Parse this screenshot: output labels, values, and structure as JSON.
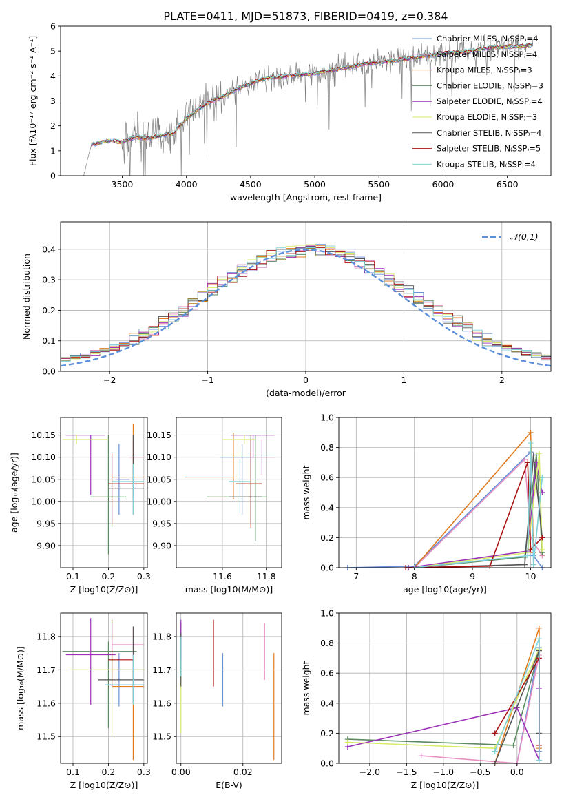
{
  "figure": {
    "title": "PLATE=0411, MJD=51873, FIBERID=0419, z=0.384"
  },
  "colors": {
    "chabrier_miles": "#6a8fd8",
    "salpeter_miles": "#e68fc0",
    "kroupa_miles": "#e07b20",
    "chabrier_elodie": "#5a8a60",
    "salpeter_elodie": "#9b32b8",
    "kroupa_elodie": "#d9ec6a",
    "chabrier_stelib": "#555555",
    "salpeter_stelib": "#aa1111",
    "kroupa_stelib": "#7fd0d8",
    "spectrum": "#808080",
    "normal_curve": "#5b8fd9"
  },
  "chart_data": [
    {
      "id": "spectrum",
      "type": "line",
      "title": "PLATE=0411, MJD=51873, FIBERID=0419, z=0.384",
      "xlabel": "wavelength [Angstrom, rest frame]",
      "ylabel": "Flux [f_λ10^-17 erg cm^-2 s^-1 A^-1]",
      "xlim": [
        3020,
        6840
      ],
      "ylim": [
        0,
        6
      ],
      "xticks": [
        3500,
        4000,
        4500,
        5000,
        5500,
        6000,
        6500
      ],
      "yticks": [
        0,
        1,
        2,
        3,
        4,
        5,
        6
      ],
      "legend_position": "top-right",
      "legend": [
        {
          "label": "Chabrier MILES, N_SSP=4",
          "color": "#6a8fd8"
        },
        {
          "label": "Salpeter MILES, N_SSP=4",
          "color": "#e68fc0"
        },
        {
          "label": "Kroupa MILES, N_SSP=3",
          "color": "#e07b20"
        },
        {
          "label": "Chabrier ELODIE, N_SSP=3",
          "color": "#5a8a60"
        },
        {
          "label": "Salpeter ELODIE, N_SSP=4",
          "color": "#9b32b8"
        },
        {
          "label": "Kroupa ELODIE, N_SSP=3",
          "color": "#d9ec6a"
        },
        {
          "label": "Chabrier STELIB, N_SSP=4",
          "color": "#555555"
        },
        {
          "label": "Salpeter STELIB, N_SSP=5",
          "color": "#aa1111"
        },
        {
          "label": "Kroupa STELIB, N_SSP=4",
          "color": "#7fd0d8"
        }
      ],
      "model_continuum": {
        "x": [
          3200,
          3260,
          3400,
          3500,
          3600,
          3700,
          3800,
          3900,
          4000,
          4100,
          4200,
          4300,
          4400,
          4500,
          4600,
          4700,
          4800,
          4900,
          5000,
          5200,
          5400,
          5600,
          5800,
          6000,
          6200,
          6400,
          6600,
          6700
        ],
        "y": [
          0,
          1.25,
          1.4,
          1.35,
          1.55,
          1.5,
          1.6,
          1.7,
          2.3,
          2.7,
          3.0,
          3.2,
          3.5,
          3.7,
          3.9,
          3.95,
          4.0,
          4.05,
          4.1,
          4.3,
          4.5,
          4.6,
          4.75,
          4.9,
          5.0,
          5.15,
          5.2,
          5.25
        ]
      },
      "observed": {
        "x_range": [
          3200,
          6700
        ],
        "noise_start": 3500,
        "noise_amplitude": 1.2
      }
    },
    {
      "id": "residuals",
      "type": "histogram",
      "xlabel": "(data-model)/error",
      "ylabel": "Normed distribution",
      "xlim": [
        -2.5,
        2.5
      ],
      "ylim": [
        0,
        0.49
      ],
      "xticks": [
        -2,
        -1,
        0,
        1,
        2
      ],
      "yticks": [
        0.0,
        0.1,
        0.2,
        0.3,
        0.4
      ],
      "legend": [
        {
          "label": "𝒩(0,1)",
          "style": "dashed"
        }
      ],
      "legend_position": "top-right",
      "bin_width": 0.1,
      "series_base": [
        0.018,
        0.021,
        0.025,
        0.03,
        0.035,
        0.04,
        0.046,
        0.052,
        0.06,
        0.068,
        0.078,
        0.09,
        0.104,
        0.12,
        0.138,
        0.158,
        0.18,
        0.202,
        0.225,
        0.25,
        0.27,
        0.29,
        0.31,
        0.33,
        0.345,
        0.36,
        0.375,
        0.385,
        0.39,
        0.395,
        0.4,
        0.398,
        0.392,
        0.382,
        0.37,
        0.355,
        0.34,
        0.32,
        0.3,
        0.28,
        0.26,
        0.24,
        0.22,
        0.2,
        0.18,
        0.16,
        0.14,
        0.12,
        0.105,
        0.09,
        0.078,
        0.068,
        0.06,
        0.052,
        0.045,
        0.04,
        0.035,
        0.031,
        0.028,
        0.025
      ]
    },
    {
      "id": "age_vs_Z",
      "type": "errorbar",
      "xlabel": "Z [log10(Z/Z⊙)]",
      "ylabel": "age  [log10(age/yr)]",
      "xlim": [
        0.065,
        0.31
      ],
      "ylim": [
        9.85,
        10.19
      ],
      "xticks": [
        0.1,
        0.2,
        0.3
      ],
      "yticks": [
        9.9,
        9.95,
        10.0,
        10.05,
        10.1,
        10.15
      ],
      "points": [
        {
          "color": "#6a8fd8",
          "x": 0.23,
          "xerr": [
            0.01,
            0.03
          ],
          "y": 10.05,
          "yerr": [
            0.08,
            0.08
          ]
        },
        {
          "color": "#e68fc0",
          "x": 0.27,
          "xerr": [
            0.01,
            0.03
          ],
          "y": 10.1,
          "yerr": [
            0.04,
            0.04
          ]
        },
        {
          "color": "#e07b20",
          "x": 0.27,
          "xerr": [
            0.06,
            0.03
          ],
          "y": 10.055,
          "yerr": [
            0.05,
            0.12
          ]
        },
        {
          "color": "#5a8a60",
          "x": 0.2,
          "xerr": [
            0.05,
            0.05
          ],
          "y": 10.01,
          "yerr": [
            0.13,
            0.14
          ]
        },
        {
          "color": "#9b32b8",
          "x": 0.15,
          "xerr": [
            0.07,
            0.04
          ],
          "y": 10.15,
          "yerr": [
            0.135,
            0.0
          ]
        },
        {
          "color": "#d9ec6a",
          "x": 0.11,
          "xerr": [
            0.04,
            0.09
          ],
          "y": 10.14,
          "yerr": [
            0.01,
            0.01
          ]
        },
        {
          "color": "#555555",
          "x": 0.27,
          "xerr": [
            0.07,
            0.03
          ],
          "y": 10.03,
          "yerr": [
            0.06,
            0.12
          ]
        },
        {
          "color": "#aa1111",
          "x": 0.21,
          "xerr": [
            0.01,
            0.09
          ],
          "y": 10.04,
          "yerr": [
            0.095,
            0.07
          ]
        },
        {
          "color": "#7fd0d8",
          "x": 0.27,
          "xerr": [
            0.06,
            0.03
          ],
          "y": 10.045,
          "yerr": [
            0.075,
            0.04
          ]
        }
      ]
    },
    {
      "id": "age_vs_mass",
      "type": "errorbar",
      "xlabel": "mass [log10(M/M⊙)]",
      "ylabel": "",
      "xlim": [
        11.39,
        11.87
      ],
      "ylim": [
        9.85,
        10.19
      ],
      "xticks": [
        11.6,
        11.8
      ],
      "yticks": [
        9.9,
        9.95,
        10.0,
        10.05,
        10.1,
        10.15
      ],
      "points": [
        {
          "color": "#6a8fd8",
          "x": 11.69,
          "xerr": [
            0.1,
            0.06
          ],
          "y": 10.1,
          "yerr": [
            0.13,
            0.03
          ]
        },
        {
          "color": "#e68fc0",
          "x": 11.78,
          "xerr": [
            0.05,
            0.06
          ],
          "y": 10.1,
          "yerr": [
            0.04,
            0.04
          ]
        },
        {
          "color": "#e07b20",
          "x": 11.65,
          "xerr": [
            0.22,
            0.0
          ],
          "y": 10.055,
          "yerr": [
            0.05,
            0.1
          ]
        },
        {
          "color": "#5a8a60",
          "x": 11.75,
          "xerr": [
            0.22,
            0.05
          ],
          "y": 10.01,
          "yerr": [
            0.1,
            0.14
          ]
        },
        {
          "color": "#9b32b8",
          "x": 11.74,
          "xerr": [
            0.1,
            0.1
          ],
          "y": 10.15,
          "yerr": [
            0.05,
            0.0
          ]
        },
        {
          "color": "#d9ec6a",
          "x": 11.7,
          "xerr": [
            0.1,
            0.05
          ],
          "y": 10.14,
          "yerr": [
            0.01,
            0.01
          ]
        },
        {
          "color": "#555555",
          "x": 11.73,
          "xerr": [
            0.1,
            0.05
          ],
          "y": 10.01,
          "yerr": [
            0.06,
            0.14
          ]
        },
        {
          "color": "#aa1111",
          "x": 11.73,
          "xerr": [
            0.07,
            0.05
          ],
          "y": 10.04,
          "yerr": [
            0.1,
            0.1
          ]
        },
        {
          "color": "#7fd0d8",
          "x": 11.68,
          "xerr": [
            0.05,
            0.05
          ],
          "y": 10.045,
          "yerr": [
            0.07,
            0.05
          ]
        }
      ]
    },
    {
      "id": "massweight_vs_age",
      "type": "line",
      "xlabel": "age  [log10(age/yr)]",
      "ylabel": "mass weight",
      "xlim": [
        6.7,
        10.35
      ],
      "ylim": [
        0,
        1.0
      ],
      "xticks": [
        7,
        8,
        9,
        10
      ],
      "yticks": [
        0.0,
        0.2,
        0.4,
        0.6,
        0.8,
        1.0
      ],
      "series": [
        {
          "color": "#6a8fd8",
          "x": [
            6.85,
            8.0,
            10.0,
            10.05,
            10.2
          ],
          "y": [
            0.0,
            0.01,
            0.77,
            0.08,
            0.0
          ]
        },
        {
          "color": "#e68fc0",
          "x": [
            8.0,
            9.9,
            10.0,
            10.2
          ],
          "y": [
            0.0,
            0.72,
            0.2,
            0.08
          ]
        },
        {
          "color": "#e07b20",
          "x": [
            8.0,
            10.0,
            10.05
          ],
          "y": [
            0.0,
            0.9,
            0.1
          ]
        },
        {
          "color": "#5a8a60",
          "x": [
            8.0,
            9.9,
            10.1,
            10.2
          ],
          "y": [
            0.0,
            0.07,
            0.75,
            0.1
          ]
        },
        {
          "color": "#9b32b8",
          "x": [
            7.9,
            9.95,
            10.1,
            10.2
          ],
          "y": [
            0.0,
            0.11,
            0.7,
            0.5
          ]
        },
        {
          "color": "#d9ec6a",
          "x": [
            8.0,
            9.95,
            10.15,
            10.2
          ],
          "y": [
            0.0,
            0.1,
            0.76,
            0.12
          ]
        },
        {
          "color": "#555555",
          "x": [
            8.0,
            9.9,
            10.05,
            10.2
          ],
          "y": [
            0.0,
            0.02,
            0.75,
            0.2
          ]
        },
        {
          "color": "#aa1111",
          "x": [
            7.85,
            9.3,
            9.95,
            10.0,
            10.2
          ],
          "y": [
            0.0,
            0.01,
            0.7,
            0.12,
            0.2
          ]
        },
        {
          "color": "#7fd0d8",
          "x": [
            8.0,
            9.95,
            10.0,
            10.05,
            10.2
          ],
          "y": [
            0.0,
            0.08,
            0.83,
            0.02,
            0.6
          ]
        }
      ]
    },
    {
      "id": "mass_vs_Z",
      "type": "errorbar",
      "xlabel": "Z [log10(Z/Z⊙)]",
      "ylabel": "mass [log10(M/M⊙)]",
      "xlim": [
        0.065,
        0.31
      ],
      "ylim": [
        11.42,
        11.87
      ],
      "xticks": [
        0.1,
        0.2,
        0.3
      ],
      "yticks": [
        11.5,
        11.6,
        11.7,
        11.8
      ],
      "points": [
        {
          "color": "#6a8fd8",
          "x": 0.23,
          "xerr": [
            0.01,
            0.07
          ],
          "y": 11.7,
          "yerr": [
            0.11,
            0.05
          ]
        },
        {
          "color": "#e68fc0",
          "x": 0.27,
          "xerr": [
            0.06,
            0.03
          ],
          "y": 11.775,
          "yerr": [
            0.1,
            0.05
          ]
        },
        {
          "color": "#e07b20",
          "x": 0.27,
          "xerr": [
            0.06,
            0.03
          ],
          "y": 11.65,
          "yerr": [
            0.22,
            0.05
          ]
        },
        {
          "color": "#5a8a60",
          "x": 0.2,
          "xerr": [
            0.13,
            0.08
          ],
          "y": 11.755,
          "yerr": [
            0.23,
            0.03
          ]
        },
        {
          "color": "#9b32b8",
          "x": 0.15,
          "xerr": [
            0.07,
            0.07
          ],
          "y": 11.745,
          "yerr": [
            0.15,
            0.11
          ]
        },
        {
          "color": "#d9ec6a",
          "x": 0.21,
          "xerr": [
            0.12,
            0.09
          ],
          "y": 11.7,
          "yerr": [
            0.2,
            0.05
          ]
        },
        {
          "color": "#555555",
          "x": 0.27,
          "xerr": [
            0.1,
            0.03
          ],
          "y": 11.67,
          "yerr": [
            0.07,
            0.16
          ]
        },
        {
          "color": "#aa1111",
          "x": 0.21,
          "xerr": [
            0.01,
            0.06
          ],
          "y": 11.73,
          "yerr": [
            0.08,
            0.12
          ]
        },
        {
          "color": "#7fd0d8",
          "x": 0.27,
          "xerr": [
            0.08,
            0.03
          ],
          "y": 11.655,
          "yerr": [
            0.06,
            0.09
          ]
        }
      ]
    },
    {
      "id": "mass_vs_ebv",
      "type": "errorbar",
      "xlabel": "E(B-V)",
      "ylabel": "",
      "xlim": [
        -0.0015,
        0.0325
      ],
      "ylim": [
        11.42,
        11.87
      ],
      "xticks": [
        0.0,
        0.02
      ],
      "yticks": [
        11.5,
        11.6,
        11.7,
        11.8
      ],
      "points": [
        {
          "color": "#6a8fd8",
          "x": 0.0135,
          "xerr": [
            0,
            0
          ],
          "y": 11.67,
          "yerr": [
            0.08,
            0.08
          ]
        },
        {
          "color": "#e68fc0",
          "x": 0.027,
          "xerr": [
            0,
            0
          ],
          "y": 11.75,
          "yerr": [
            0.08,
            0.09
          ]
        },
        {
          "color": "#e07b20",
          "x": 0.03,
          "xerr": [
            0,
            0
          ],
          "y": 11.59,
          "yerr": [
            0.16,
            0.16
          ]
        },
        {
          "color": "#5a8a60",
          "x": 0.0,
          "xerr": [
            0,
            0
          ],
          "y": 11.76,
          "yerr": [
            0.08,
            0.08
          ]
        },
        {
          "color": "#9b32b8",
          "x": 0.0,
          "xerr": [
            0,
            0
          ],
          "y": 11.76,
          "yerr": [
            0.07,
            0.09
          ]
        },
        {
          "color": "#d9ec6a",
          "x": 0.0,
          "xerr": [
            0,
            0
          ],
          "y": 11.62,
          "yerr": [
            0.11,
            0.11
          ]
        },
        {
          "color": "#555555",
          "x": 0.0,
          "xerr": [
            0,
            0
          ],
          "y": 11.73,
          "yerr": [
            0.08,
            0.08
          ]
        },
        {
          "color": "#aa1111",
          "x": 0.0105,
          "xerr": [
            0,
            0
          ],
          "y": 11.75,
          "yerr": [
            0.1,
            0.1
          ]
        },
        {
          "color": "#7fd0d8",
          "x": 0.0,
          "xerr": [
            0,
            0
          ],
          "y": 11.74,
          "yerr": [
            0.06,
            0.06
          ]
        }
      ]
    },
    {
      "id": "massweight_vs_Z",
      "type": "line",
      "xlabel": "Z [log10(Z/Z⊙)]",
      "ylabel": "mass weight",
      "xlim": [
        -2.42,
        0.46
      ],
      "ylim": [
        0,
        1.0
      ],
      "xticks": [
        -2.0,
        -1.5,
        -1.0,
        -0.5,
        0.0
      ],
      "yticks": [
        0.0,
        0.2,
        0.4,
        0.6,
        0.8,
        1.0
      ],
      "series": [
        {
          "color": "#6a8fd8",
          "x": [
            0.0,
            0.3,
            0.3
          ],
          "y": [
            0.0,
            0.77,
            0.08
          ]
        },
        {
          "color": "#e68fc0",
          "x": [
            -1.3,
            0.0,
            0.3
          ],
          "y": [
            0.05,
            0.0,
            0.72
          ]
        },
        {
          "color": "#e07b20",
          "x": [
            -0.3,
            0.3,
            0.3
          ],
          "y": [
            0.0,
            0.9,
            0.1
          ]
        },
        {
          "color": "#5a8a60",
          "x": [
            -2.3,
            -0.05,
            0.3
          ],
          "y": [
            0.16,
            0.12,
            0.75
          ]
        },
        {
          "color": "#9b32b8",
          "x": [
            -2.3,
            0.0,
            0.3,
            0.3
          ],
          "y": [
            0.11,
            0.37,
            0.02,
            0.5
          ]
        },
        {
          "color": "#d9ec6a",
          "x": [
            -2.3,
            -0.3,
            0.3
          ],
          "y": [
            0.14,
            0.1,
            0.76
          ]
        },
        {
          "color": "#555555",
          "x": [
            -0.3,
            0.3,
            0.3
          ],
          "y": [
            0.0,
            0.75,
            0.2
          ]
        },
        {
          "color": "#aa1111",
          "x": [
            -0.3,
            0.3,
            0.3
          ],
          "y": [
            0.2,
            0.7,
            0.12
          ]
        },
        {
          "color": "#7fd0d8",
          "x": [
            -0.3,
            0.3,
            0.3
          ],
          "y": [
            0.08,
            0.83,
            0.02
          ]
        }
      ]
    }
  ]
}
